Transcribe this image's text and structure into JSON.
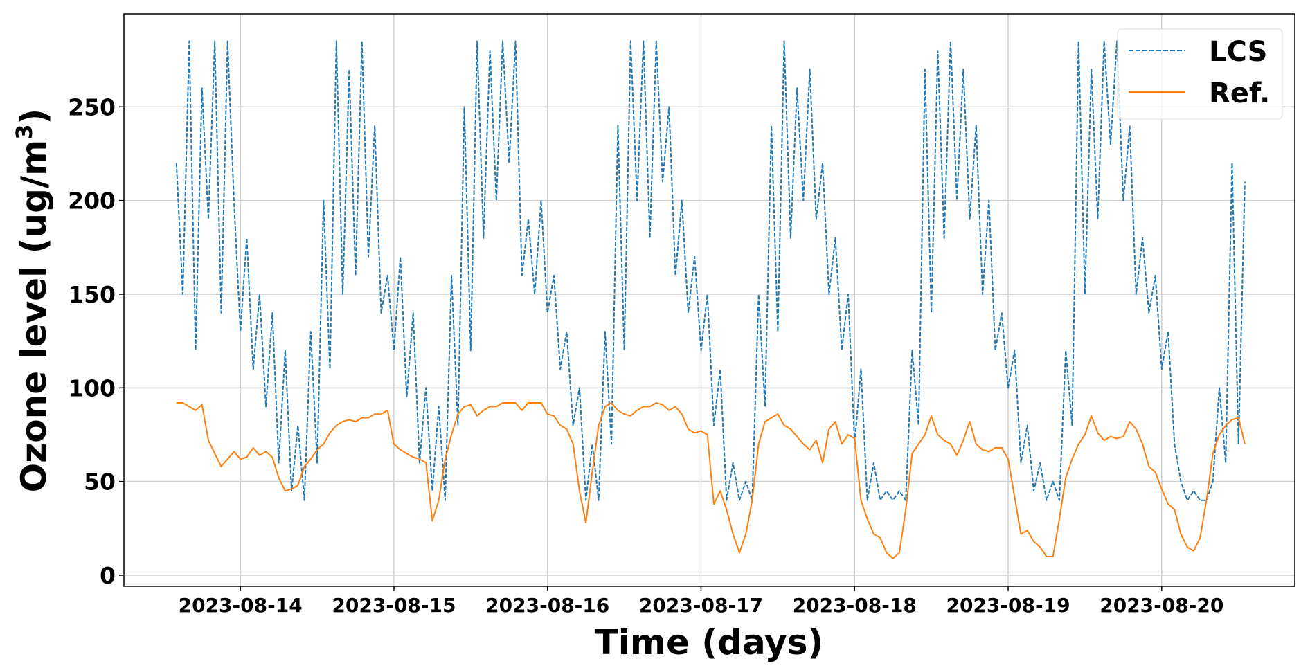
{
  "chart_data": {
    "type": "line",
    "title": "",
    "xlabel": "Time (days)",
    "ylabel_main": "Ozone level (ug/m",
    "ylabel_sup": "3",
    "ylabel_end": ")",
    "x_unit": "hours since 2023-08-13 00:00",
    "x_start_hour": 14,
    "x_step_hours": 1,
    "xlim": [
      5.8,
      188.8
    ],
    "ylim": [
      -5.9,
      299.6
    ],
    "grid": true,
    "legend_position": "top-right",
    "x_ticks": [
      {
        "hour": 24,
        "label": "2023-08-14"
      },
      {
        "hour": 48,
        "label": "2023-08-15"
      },
      {
        "hour": 72,
        "label": "2023-08-16"
      },
      {
        "hour": 96,
        "label": "2023-08-17"
      },
      {
        "hour": 120,
        "label": "2023-08-18"
      },
      {
        "hour": 144,
        "label": "2023-08-19"
      },
      {
        "hour": 168,
        "label": "2023-08-20"
      }
    ],
    "y_ticks": [
      {
        "value": 0,
        "label": "0"
      },
      {
        "value": 50,
        "label": "50"
      },
      {
        "value": 100,
        "label": "100"
      },
      {
        "value": 150,
        "label": "150"
      },
      {
        "value": 200,
        "label": "200"
      },
      {
        "value": 250,
        "label": "250"
      }
    ],
    "series": [
      {
        "name": "LCS",
        "color": "#1f77b4",
        "style": "dashed",
        "values": [
          220,
          150,
          285,
          120,
          260,
          190,
          285,
          140,
          285,
          200,
          130,
          180,
          110,
          150,
          90,
          140,
          60,
          120,
          45,
          80,
          40,
          130,
          60,
          200,
          110,
          285,
          150,
          270,
          160,
          285,
          170,
          240,
          140,
          160,
          120,
          170,
          95,
          140,
          60,
          100,
          45,
          90,
          40,
          160,
          80,
          250,
          120,
          285,
          180,
          280,
          200,
          285,
          220,
          285,
          160,
          190,
          150,
          200,
          140,
          160,
          110,
          130,
          80,
          100,
          40,
          70,
          40,
          130,
          70,
          240,
          120,
          285,
          200,
          285,
          180,
          285,
          210,
          250,
          160,
          200,
          140,
          170,
          120,
          150,
          80,
          110,
          40,
          60,
          40,
          50,
          40,
          150,
          90,
          240,
          130,
          285,
          180,
          260,
          200,
          270,
          190,
          220,
          150,
          180,
          120,
          150,
          70,
          110,
          40,
          60,
          40,
          45,
          40,
          45,
          40,
          120,
          80,
          270,
          140,
          280,
          180,
          285,
          200,
          270,
          190,
          240,
          150,
          200,
          120,
          140,
          100,
          120,
          60,
          80,
          45,
          60,
          40,
          50,
          40,
          120,
          80,
          285,
          150,
          270,
          190,
          285,
          230,
          285,
          200,
          240,
          150,
          180,
          140,
          160,
          110,
          130,
          70,
          50,
          40,
          45,
          40,
          40,
          50,
          100,
          60,
          220,
          70,
          210
        ]
      },
      {
        "name": "Ref.",
        "color": "#ff7f0e",
        "style": "solid",
        "values": [
          92,
          92,
          90,
          88,
          91,
          72,
          65,
          58,
          62,
          66,
          62,
          63,
          68,
          64,
          66,
          63,
          52,
          45,
          46,
          48,
          58,
          62,
          67,
          70,
          76,
          80,
          82,
          83,
          82,
          84,
          84,
          86,
          86,
          88,
          70,
          67,
          65,
          63,
          62,
          60,
          29,
          40,
          62,
          75,
          86,
          90,
          91,
          85,
          88,
          90,
          90,
          92,
          92,
          92,
          88,
          92,
          92,
          92,
          86,
          85,
          80,
          78,
          70,
          45,
          28,
          55,
          80,
          90,
          92,
          88,
          86,
          85,
          88,
          90,
          90,
          92,
          91,
          88,
          90,
          86,
          78,
          76,
          77,
          75,
          38,
          45,
          35,
          22,
          12,
          22,
          40,
          70,
          82,
          84,
          86,
          80,
          78,
          74,
          70,
          67,
          72,
          60,
          78,
          82,
          70,
          75,
          73,
          40,
          30,
          22,
          20,
          12,
          9,
          12,
          35,
          65,
          70,
          75,
          85,
          75,
          72,
          70,
          64,
          72,
          82,
          70,
          67,
          66,
          68,
          68,
          62,
          42,
          22,
          24,
          18,
          15,
          10,
          10,
          30,
          52,
          62,
          70,
          75,
          85,
          76,
          72,
          74,
          73,
          74,
          82,
          78,
          70,
          58,
          55,
          46,
          38,
          35,
          22,
          15,
          13,
          20,
          40,
          65,
          75,
          80,
          83,
          84,
          70
        ]
      }
    ]
  }
}
